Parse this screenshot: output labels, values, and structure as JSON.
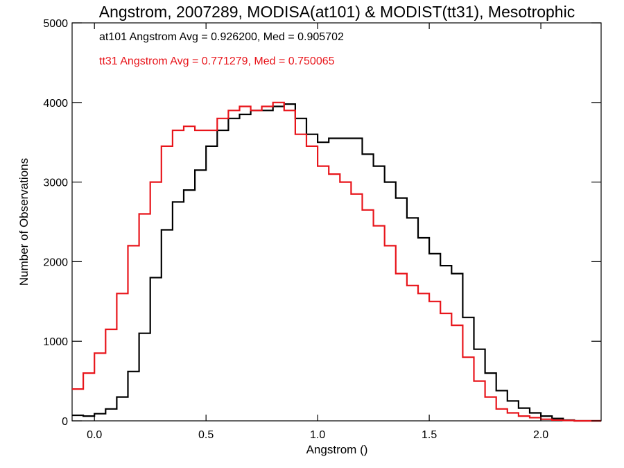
{
  "chart_data": {
    "type": "line",
    "title": "Angstrom, 2007289, MODISA(at101) & MODIST(tt31), Mesotrophic",
    "xlabel": "Angstrom ()",
    "ylabel": "Number of Observations",
    "xlim": [
      -0.1,
      2.27
    ],
    "ylim": [
      0,
      5000
    ],
    "xticks": [
      0.0,
      0.5,
      1.0,
      1.5,
      2.0
    ],
    "xtick_labels": [
      "0.0",
      "0.5",
      "1.0",
      "1.5",
      "2.0"
    ],
    "yticks": [
      0,
      1000,
      2000,
      3000,
      4000,
      5000
    ],
    "ytick_labels": [
      "0",
      "1000",
      "2000",
      "3000",
      "4000",
      "5000"
    ],
    "grid": false,
    "step": true,
    "annotations": [
      {
        "text": "at101 Angstrom Avg = 0.926200, Med = 0.905702",
        "color": "#000000"
      },
      {
        "text": "tt31 Angstrom Avg = 0.771279, Med = 0.750065",
        "color": "#e8151b"
      }
    ],
    "series": [
      {
        "color": "#000000",
        "x": [
          -0.1,
          -0.05,
          0.0,
          0.05,
          0.1,
          0.15,
          0.2,
          0.25,
          0.3,
          0.35,
          0.4,
          0.45,
          0.5,
          0.55,
          0.6,
          0.65,
          0.7,
          0.75,
          0.8,
          0.85,
          0.9,
          0.95,
          1.0,
          1.05,
          1.1,
          1.15,
          1.2,
          1.25,
          1.3,
          1.35,
          1.4,
          1.45,
          1.5,
          1.55,
          1.6,
          1.65,
          1.7,
          1.75,
          1.8,
          1.85,
          1.9,
          1.95,
          2.0,
          2.05,
          2.1,
          2.15,
          2.2,
          2.27
        ],
        "y": [
          70,
          60,
          90,
          150,
          300,
          620,
          1100,
          1800,
          2400,
          2750,
          2900,
          3150,
          3450,
          3650,
          3800,
          3850,
          3900,
          3900,
          3950,
          3980,
          3800,
          3600,
          3500,
          3550,
          3550,
          3550,
          3350,
          3200,
          3000,
          2800,
          2550,
          2300,
          2100,
          1950,
          1850,
          1300,
          900,
          600,
          380,
          250,
          160,
          100,
          60,
          30,
          10,
          0,
          0,
          0
        ]
      },
      {
        "color": "#e8151b",
        "x": [
          -0.1,
          -0.05,
          0.0,
          0.05,
          0.1,
          0.15,
          0.2,
          0.25,
          0.3,
          0.35,
          0.4,
          0.45,
          0.5,
          0.55,
          0.6,
          0.65,
          0.7,
          0.75,
          0.8,
          0.85,
          0.9,
          0.95,
          1.0,
          1.05,
          1.1,
          1.15,
          1.2,
          1.25,
          1.3,
          1.35,
          1.4,
          1.45,
          1.5,
          1.55,
          1.6,
          1.65,
          1.7,
          1.75,
          1.8,
          1.85,
          1.9,
          1.95,
          2.0,
          2.05,
          2.1,
          2.15,
          2.2,
          2.27
        ],
        "y": [
          400,
          600,
          850,
          1150,
          1600,
          2200,
          2600,
          3000,
          3450,
          3650,
          3700,
          3650,
          3650,
          3800,
          3900,
          3950,
          3900,
          3950,
          4000,
          3900,
          3600,
          3450,
          3200,
          3100,
          3000,
          2850,
          2650,
          2450,
          2200,
          1850,
          1700,
          1600,
          1500,
          1350,
          1200,
          800,
          500,
          300,
          150,
          100,
          60,
          40,
          20,
          10,
          5,
          0,
          0,
          0
        ]
      }
    ]
  }
}
